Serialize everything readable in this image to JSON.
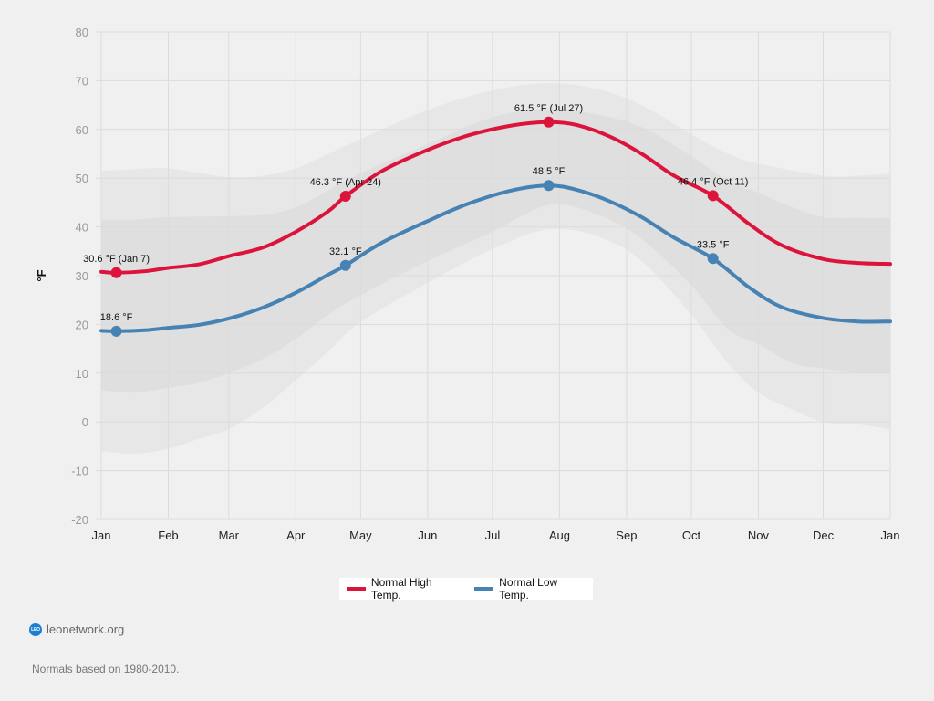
{
  "chart_data": {
    "type": "line",
    "title": "",
    "xlabel": "",
    "ylabel": "°F",
    "ylim": [
      -20,
      80
    ],
    "yticks": [
      80,
      70,
      60,
      50,
      40,
      30,
      20,
      10,
      0,
      -10,
      -20
    ],
    "x_domain_days": [
      0,
      365
    ],
    "x_ticks": [
      {
        "label": "Jan",
        "day": 0
      },
      {
        "label": "Feb",
        "day": 31
      },
      {
        "label": "Mar",
        "day": 59
      },
      {
        "label": "Apr",
        "day": 90
      },
      {
        "label": "May",
        "day": 120
      },
      {
        "label": "Jun",
        "day": 151
      },
      {
        "label": "Jul",
        "day": 181
      },
      {
        "label": "Aug",
        "day": 212
      },
      {
        "label": "Sep",
        "day": 243
      },
      {
        "label": "Oct",
        "day": 273
      },
      {
        "label": "Nov",
        "day": 304
      },
      {
        "label": "Dec",
        "day": 334
      },
      {
        "label": "Jan",
        "day": 365
      }
    ],
    "grid": true,
    "legend_position": "bottom-center",
    "series": [
      {
        "name": "Normal High Temp.",
        "color": "#dc143c",
        "points": [
          [
            0,
            30.8
          ],
          [
            7,
            30.6
          ],
          [
            20,
            30.9
          ],
          [
            31,
            31.6
          ],
          [
            45,
            32.3
          ],
          [
            59,
            34.0
          ],
          [
            75,
            35.8
          ],
          [
            90,
            39.0
          ],
          [
            105,
            43.2
          ],
          [
            113,
            46.3
          ],
          [
            130,
            51.5
          ],
          [
            151,
            55.8
          ],
          [
            170,
            58.8
          ],
          [
            190,
            60.8
          ],
          [
            207,
            61.5
          ],
          [
            220,
            60.9
          ],
          [
            235,
            58.6
          ],
          [
            250,
            55.0
          ],
          [
            265,
            50.5
          ],
          [
            283,
            46.4
          ],
          [
            300,
            40.5
          ],
          [
            315,
            36.2
          ],
          [
            334,
            33.4
          ],
          [
            350,
            32.6
          ],
          [
            365,
            32.4
          ]
        ]
      },
      {
        "name": "Normal Low Temp.",
        "color": "#4682b4",
        "points": [
          [
            0,
            18.7
          ],
          [
            7,
            18.6
          ],
          [
            20,
            18.8
          ],
          [
            31,
            19.3
          ],
          [
            45,
            19.9
          ],
          [
            59,
            21.2
          ],
          [
            75,
            23.5
          ],
          [
            90,
            26.5
          ],
          [
            105,
            30.2
          ],
          [
            113,
            32.1
          ],
          [
            130,
            36.8
          ],
          [
            151,
            41.2
          ],
          [
            170,
            44.8
          ],
          [
            190,
            47.5
          ],
          [
            207,
            48.5
          ],
          [
            220,
            47.6
          ],
          [
            235,
            45.3
          ],
          [
            250,
            42.0
          ],
          [
            265,
            37.8
          ],
          [
            283,
            33.5
          ],
          [
            300,
            27.5
          ],
          [
            315,
            23.5
          ],
          [
            334,
            21.3
          ],
          [
            350,
            20.6
          ],
          [
            365,
            20.6
          ]
        ]
      }
    ],
    "bands": [
      {
        "name": "outer-range",
        "color": "#e7e7e7",
        "upper": [
          [
            0,
            51.5
          ],
          [
            15,
            51.8
          ],
          [
            31,
            52.0
          ],
          [
            59,
            50.2
          ],
          [
            75,
            50.5
          ],
          [
            90,
            52.0
          ],
          [
            105,
            55.0
          ],
          [
            120,
            58.0
          ],
          [
            151,
            64.0
          ],
          [
            181,
            68.0
          ],
          [
            207,
            69.5
          ],
          [
            230,
            68.2
          ],
          [
            250,
            65.0
          ],
          [
            273,
            59.0
          ],
          [
            290,
            55.0
          ],
          [
            304,
            53.0
          ],
          [
            334,
            50.5
          ],
          [
            350,
            50.5
          ],
          [
            365,
            51.0
          ]
        ],
        "lower": [
          [
            0,
            -6.0
          ],
          [
            15,
            -6.5
          ],
          [
            31,
            -5.5
          ],
          [
            45,
            -3.5
          ],
          [
            59,
            -1.5
          ],
          [
            75,
            3.0
          ],
          [
            90,
            8.5
          ],
          [
            105,
            14.5
          ],
          [
            120,
            20.5
          ],
          [
            151,
            28.5
          ],
          [
            181,
            35.5
          ],
          [
            207,
            39.5
          ],
          [
            230,
            38.0
          ],
          [
            250,
            33.0
          ],
          [
            273,
            22.0
          ],
          [
            290,
            12.0
          ],
          [
            304,
            6.0
          ],
          [
            320,
            2.5
          ],
          [
            334,
            0.0
          ],
          [
            350,
            -0.5
          ],
          [
            365,
            -1.5
          ]
        ]
      },
      {
        "name": "inner-range",
        "color": "#dfdfdf",
        "upper": [
          [
            0,
            41.5
          ],
          [
            15,
            41.5
          ],
          [
            31,
            42.0
          ],
          [
            59,
            42.2
          ],
          [
            75,
            42.5
          ],
          [
            90,
            44.0
          ],
          [
            105,
            47.5
          ],
          [
            120,
            51.0
          ],
          [
            151,
            57.0
          ],
          [
            181,
            62.5
          ],
          [
            207,
            64.2
          ],
          [
            230,
            63.0
          ],
          [
            250,
            60.5
          ],
          [
            273,
            54.5
          ],
          [
            290,
            49.5
          ],
          [
            304,
            47.0
          ],
          [
            320,
            44.0
          ],
          [
            334,
            42.0
          ],
          [
            350,
            41.8
          ],
          [
            365,
            41.8
          ]
        ],
        "lower": [
          [
            0,
            6.5
          ],
          [
            15,
            6.0
          ],
          [
            31,
            7.0
          ],
          [
            45,
            8.0
          ],
          [
            59,
            10.0
          ],
          [
            75,
            13.0
          ],
          [
            90,
            17.0
          ],
          [
            105,
            22.0
          ],
          [
            120,
            26.0
          ],
          [
            151,
            33.0
          ],
          [
            181,
            39.0
          ],
          [
            207,
            44.5
          ],
          [
            230,
            42.5
          ],
          [
            250,
            37.5
          ],
          [
            273,
            28.0
          ],
          [
            290,
            19.0
          ],
          [
            304,
            16.0
          ],
          [
            320,
            12.0
          ],
          [
            334,
            11.0
          ],
          [
            350,
            10.0
          ],
          [
            365,
            10.0
          ]
        ]
      }
    ],
    "annotations": [
      {
        "series": "Normal High Temp.",
        "day": 7,
        "value": 30.6,
        "label": "30.6 °F (Jan 7)"
      },
      {
        "series": "Normal Low Temp.",
        "day": 7,
        "value": 18.6,
        "label": "18.6 °F"
      },
      {
        "series": "Normal High Temp.",
        "day": 113,
        "value": 46.3,
        "label": "46.3 °F (Apr 24)"
      },
      {
        "series": "Normal Low Temp.",
        "day": 113,
        "value": 32.1,
        "label": "32.1 °F"
      },
      {
        "series": "Normal High Temp.",
        "day": 207,
        "value": 61.5,
        "label": "61.5 °F (Jul 27)"
      },
      {
        "series": "Normal Low Temp.",
        "day": 207,
        "value": 48.5,
        "label": "48.5 °F"
      },
      {
        "series": "Normal High Temp.",
        "day": 283,
        "value": 46.4,
        "label": "46.4 °F (Oct 11)"
      },
      {
        "series": "Normal Low Temp.",
        "day": 283,
        "value": 33.5,
        "label": "33.5 °F"
      }
    ]
  },
  "legend": {
    "items": [
      {
        "label": "Normal High Temp.",
        "color": "#dc143c"
      },
      {
        "label": "Normal Low Temp.",
        "color": "#4682b4"
      }
    ]
  },
  "footer": {
    "logo_text": "LEO",
    "brand": "leonetwork.org",
    "note": "Normals based on 1980-2010."
  }
}
